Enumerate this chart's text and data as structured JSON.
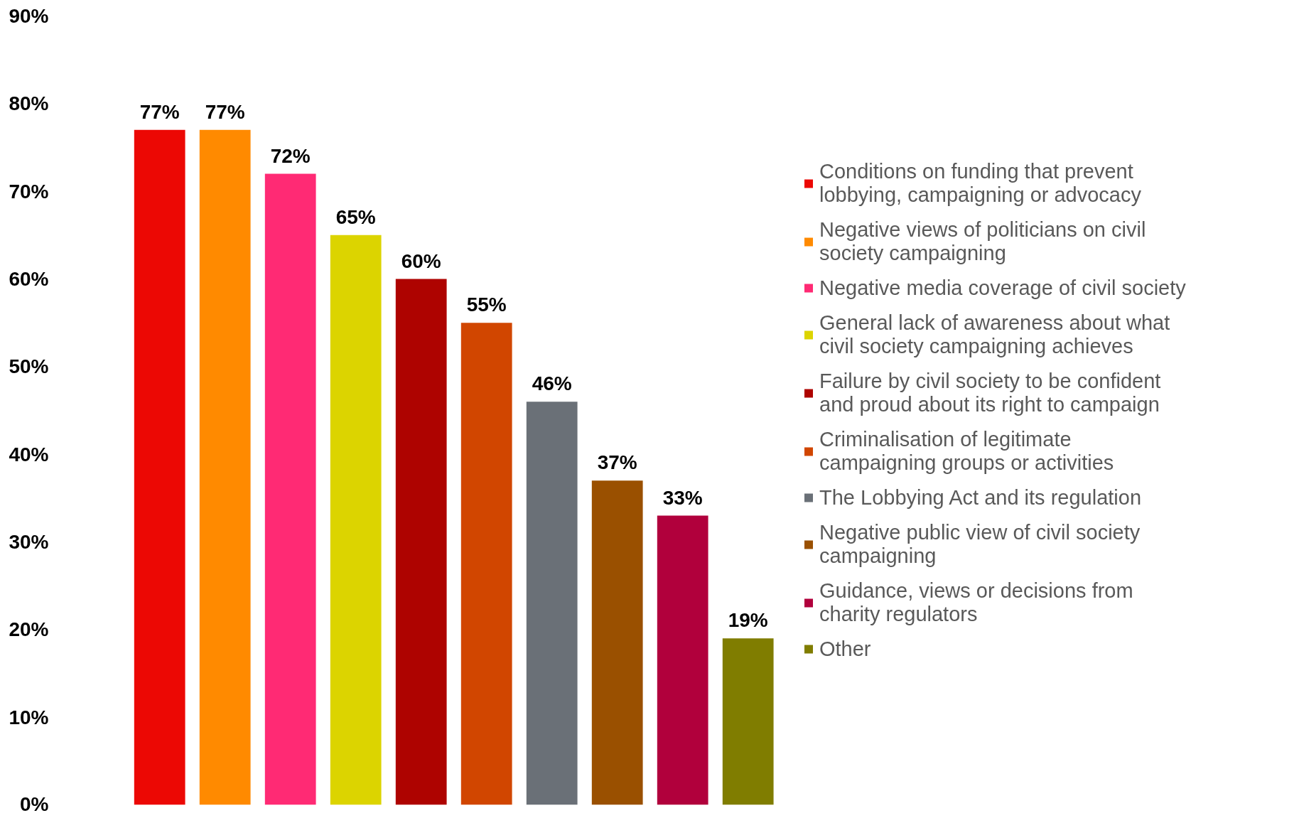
{
  "chart_data": {
    "type": "bar",
    "categories": [
      null,
      null,
      null,
      null,
      null,
      null,
      null,
      null,
      null,
      null
    ],
    "stacked": true,
    "series": [
      {
        "name": "Conditions on funding that prevent lobbying, campaigning or advocacy",
        "color": "#ec0804",
        "values": [
          77,
          null,
          null,
          null,
          null,
          null,
          null,
          null,
          null,
          null
        ],
        "value_labels": [
          "77%",
          null,
          null,
          null,
          null,
          null,
          null,
          null,
          null,
          null
        ]
      },
      {
        "name": "Negative views of politicians on civil society campaigning",
        "color": "#ff8a00",
        "values": [
          null,
          77,
          null,
          null,
          null,
          null,
          null,
          null,
          null,
          null
        ],
        "value_labels": [
          null,
          "77%",
          null,
          null,
          null,
          null,
          null,
          null,
          null,
          null
        ]
      },
      {
        "name": "Negative media coverage of civil society",
        "color": "#ff2a74",
        "values": [
          null,
          null,
          72,
          null,
          null,
          null,
          null,
          null,
          null,
          null
        ],
        "value_labels": [
          null,
          null,
          "72%",
          null,
          null,
          null,
          null,
          null,
          null,
          null
        ]
      },
      {
        "name": "General lack of awareness about what civil society campaigning achieves",
        "color": "#dcd400",
        "values": [
          null,
          null,
          null,
          65,
          null,
          null,
          null,
          null,
          null,
          null
        ],
        "value_labels": [
          null,
          null,
          null,
          "65%",
          null,
          null,
          null,
          null,
          null,
          null
        ]
      },
      {
        "name": "Failure by civil society to be confident and proud about its right to campaign",
        "color": "#ae0300",
        "values": [
          null,
          null,
          null,
          null,
          60,
          null,
          null,
          null,
          null,
          null
        ],
        "value_labels": [
          null,
          null,
          null,
          null,
          "60%",
          null,
          null,
          null,
          null,
          null
        ]
      },
      {
        "name": "Criminalisation of legitimate campaigning groups or activities",
        "color": "#d14600",
        "values": [
          null,
          null,
          null,
          null,
          null,
          55,
          null,
          null,
          null,
          null
        ],
        "value_labels": [
          null,
          null,
          null,
          null,
          null,
          "55%",
          null,
          null,
          null,
          null
        ]
      },
      {
        "name": "The Lobbying Act and its regulation",
        "color": "#6a7077",
        "values": [
          null,
          null,
          null,
          null,
          null,
          null,
          46,
          null,
          null,
          null
        ],
        "value_labels": [
          null,
          null,
          null,
          null,
          null,
          null,
          "46%",
          null,
          null,
          null
        ]
      },
      {
        "name": "Negative public view of civil society campaigning",
        "color": "#9a5000",
        "values": [
          null,
          null,
          null,
          null,
          null,
          null,
          null,
          37,
          null,
          null
        ],
        "value_labels": [
          null,
          null,
          null,
          null,
          null,
          null,
          null,
          "37%",
          null,
          null
        ]
      },
      {
        "name": "Guidance, views or decisions from charity regulators",
        "color": "#b1003c",
        "values": [
          null,
          null,
          null,
          null,
          null,
          null,
          null,
          null,
          33,
          null
        ],
        "value_labels": [
          null,
          null,
          null,
          null,
          null,
          null,
          null,
          null,
          "33%",
          null
        ]
      },
      {
        "name": "Other",
        "color": "#807d00",
        "values": [
          null,
          null,
          null,
          null,
          null,
          null,
          null,
          null,
          null,
          19
        ],
        "value_labels": [
          null,
          null,
          null,
          null,
          null,
          null,
          null,
          null,
          null,
          "19%"
        ]
      }
    ],
    "ylim": [
      0,
      90
    ],
    "yticks": [
      {
        "value": 0,
        "label": "0%"
      },
      {
        "value": 10,
        "label": "10%"
      },
      {
        "value": 20,
        "label": "20%"
      },
      {
        "value": 30,
        "label": "30%"
      },
      {
        "value": 40,
        "label": "40%"
      },
      {
        "value": 50,
        "label": "50%"
      },
      {
        "value": 60,
        "label": "60%"
      },
      {
        "value": 70,
        "label": "70%"
      },
      {
        "value": 80,
        "label": "80%"
      },
      {
        "value": 90,
        "label": "90%"
      }
    ],
    "tick_labels": "y",
    "grid": false,
    "legend": "right"
  }
}
